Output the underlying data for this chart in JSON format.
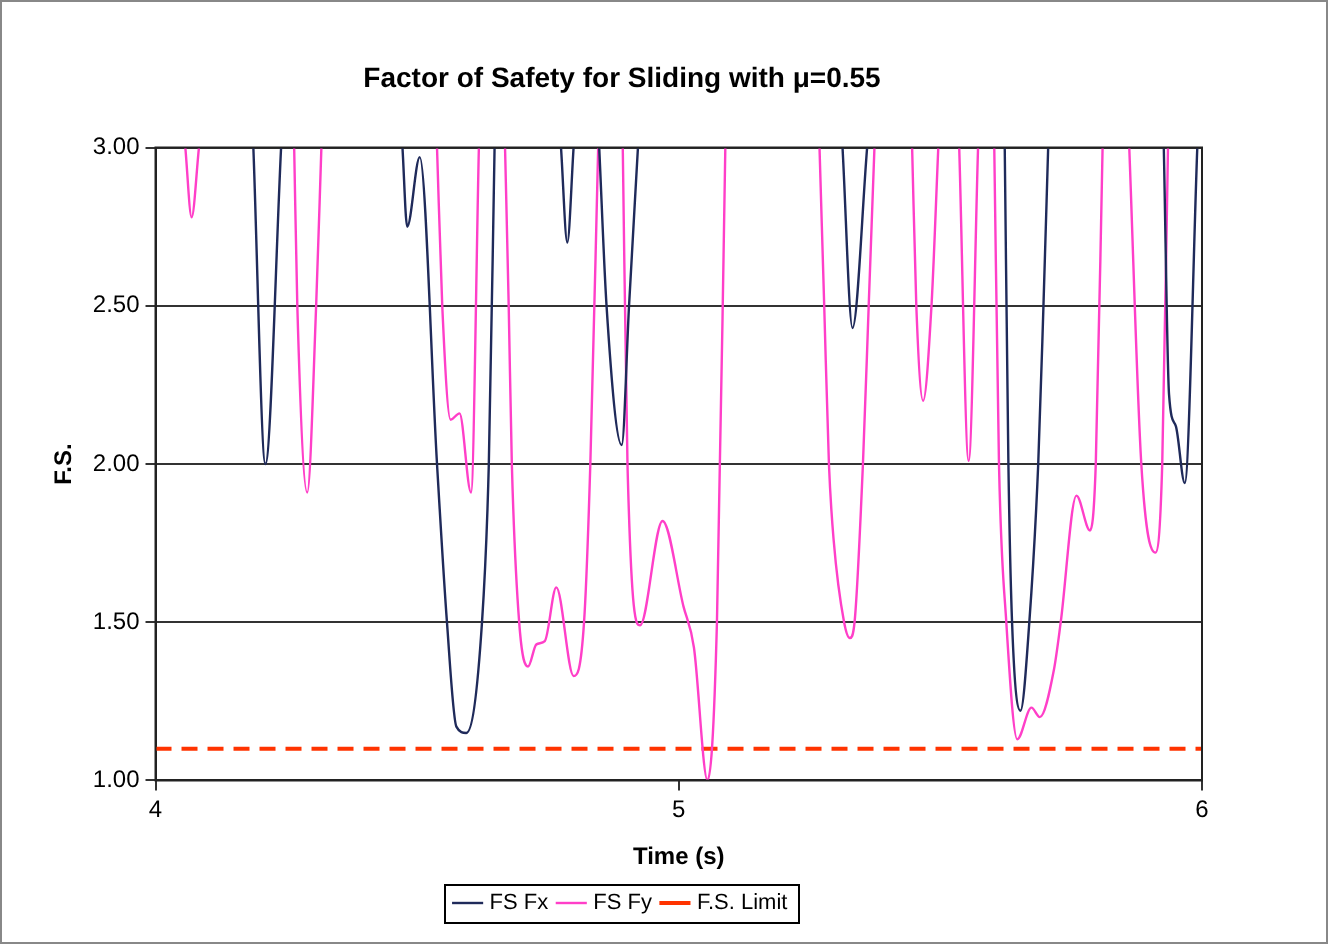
{
  "chart_data": {
    "type": "line",
    "title": "Factor of Safety for Sliding with μ=0.55",
    "xlabel": "Time (s)",
    "ylabel": "F.S.",
    "xlim": [
      4,
      6
    ],
    "xticks": [
      4,
      5,
      6
    ],
    "ylim": [
      1,
      3
    ],
    "yticks": [
      {
        "value": 1,
        "label": "1.00"
      },
      {
        "value": 1.5,
        "label": "1.50"
      },
      {
        "value": 2,
        "label": "2.00"
      },
      {
        "value": 2.5,
        "label": "2.50"
      },
      {
        "value": 3,
        "label": "3.00"
      }
    ],
    "grid": "y",
    "legend": "bottom",
    "marker": "none",
    "series": [
      {
        "name": "FS Fx",
        "color": "#1f2a5a",
        "x": [
          4.187,
          4.21,
          4.24,
          4.35,
          4.472,
          4.481,
          4.505,
          4.538,
          4.557,
          4.575,
          4.594,
          4.624,
          4.637,
          4.648,
          4.7,
          4.775,
          4.787,
          4.799,
          4.82,
          4.848,
          4.862,
          4.891,
          4.905,
          4.922,
          5.1,
          5.313,
          5.332,
          5.36,
          5.5,
          5.623,
          5.63,
          5.637,
          5.653,
          5.67,
          5.687,
          5.697,
          5.706,
          5.8,
          5.927,
          5.937,
          5.95,
          5.967,
          5.991
        ],
        "values": [
          3,
          2.0,
          3,
          null,
          3,
          2.75,
          2.97,
          2.0,
          1.5,
          1.17,
          1.15,
          1.5,
          2.0,
          3,
          null,
          3,
          2.7,
          3,
          null,
          3,
          2.5,
          2.06,
          2.5,
          3,
          null,
          3,
          2.43,
          3,
          null,
          3,
          2.0,
          1.5,
          1.22,
          1.5,
          2.0,
          2.5,
          3,
          null,
          3,
          2.22,
          2.12,
          1.94,
          3
        ]
      },
      {
        "name": "FS Fy",
        "color": "#ff3fc8",
        "x": [
          4.057,
          4.069,
          4.083,
          4.15,
          4.265,
          4.271,
          4.29,
          4.307,
          4.317,
          4.4,
          4.538,
          4.548,
          4.564,
          4.581,
          4.603,
          4.618,
          4.64,
          4.668,
          4.675,
          4.681,
          4.695,
          4.712,
          4.728,
          4.744,
          4.766,
          4.799,
          4.819,
          4.831,
          4.846,
          4.87,
          4.893,
          4.902,
          4.926,
          4.969,
          5.009,
          5.029,
          5.055,
          5.073,
          5.089,
          5.2,
          5.269,
          5.278,
          5.287,
          5.296,
          5.316,
          5.327,
          5.336,
          5.352,
          5.363,
          5.374,
          5.41,
          5.446,
          5.454,
          5.467,
          5.483,
          5.496,
          5.52,
          5.536,
          5.554,
          5.572,
          5.59,
          5.603,
          5.612,
          5.626,
          5.647,
          5.674,
          5.69,
          5.717,
          5.73,
          5.76,
          5.786,
          5.797,
          5.81,
          5.84,
          5.861,
          5.884,
          5.911,
          5.924,
          5.935
        ],
        "values": [
          3,
          2.78,
          3,
          null,
          3,
          2.5,
          1.91,
          2.5,
          3,
          null,
          3,
          2.5,
          2.14,
          2.16,
          1.91,
          3,
          null,
          3,
          2.5,
          2.0,
          1.5,
          1.36,
          1.43,
          1.44,
          1.61,
          1.33,
          1.5,
          2.0,
          3,
          null,
          3,
          2.0,
          1.49,
          1.82,
          1.55,
          1.42,
          1.0,
          1.5,
          3,
          null,
          3,
          2.5,
          2.0,
          1.76,
          1.5,
          1.45,
          1.5,
          2.0,
          2.5,
          3,
          null,
          3,
          2.5,
          2.2,
          2.5,
          3,
          null,
          3,
          2.01,
          3,
          null,
          3,
          2.0,
          1.5,
          1.13,
          1.23,
          1.2,
          1.35,
          1.5,
          1.9,
          1.79,
          2.0,
          3,
          null,
          3,
          2.0,
          1.72,
          2.0,
          3
        ]
      },
      {
        "name": "F.S. Limit",
        "color": "#ff3300",
        "line_style": "dashed",
        "x": [
          4,
          6
        ],
        "values": [
          1.1,
          1.1
        ]
      }
    ]
  }
}
